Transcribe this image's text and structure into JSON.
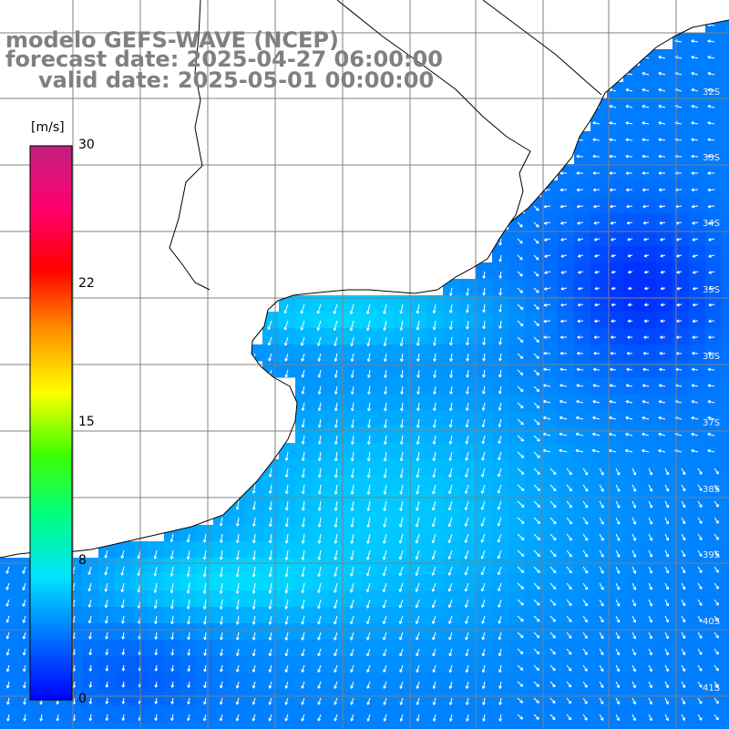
{
  "title": {
    "line1": "modelo GEFS-WAVE (NCEP)",
    "line2": "forecast date: 2025-04-27 06:00:00",
    "line3": "valid date: 2025-05-01 00:00:00"
  },
  "colorbar": {
    "unit": "[m/s]",
    "ticks": [
      {
        "value": 30,
        "label": "30"
      },
      {
        "value": 22,
        "label": "22"
      },
      {
        "value": 15,
        "label": "15"
      },
      {
        "value": 8,
        "label": "8"
      },
      {
        "value": 0,
        "label": "0"
      }
    ],
    "colors": [
      "#0000ff",
      "#0070ff",
      "#00e4ff",
      "#00ff80",
      "#40ff00",
      "#ffff00",
      "#ff9000",
      "#ff0000",
      "#ff0070",
      "#c02080"
    ]
  },
  "map": {
    "latitude_labels": [
      "32S",
      "33S",
      "34S",
      "35S",
      "36S",
      "37S",
      "38S",
      "39S",
      "40S",
      "41S"
    ],
    "field": "wind speed and direction",
    "land_color": "#ffffff",
    "grid_color": "#808080"
  }
}
